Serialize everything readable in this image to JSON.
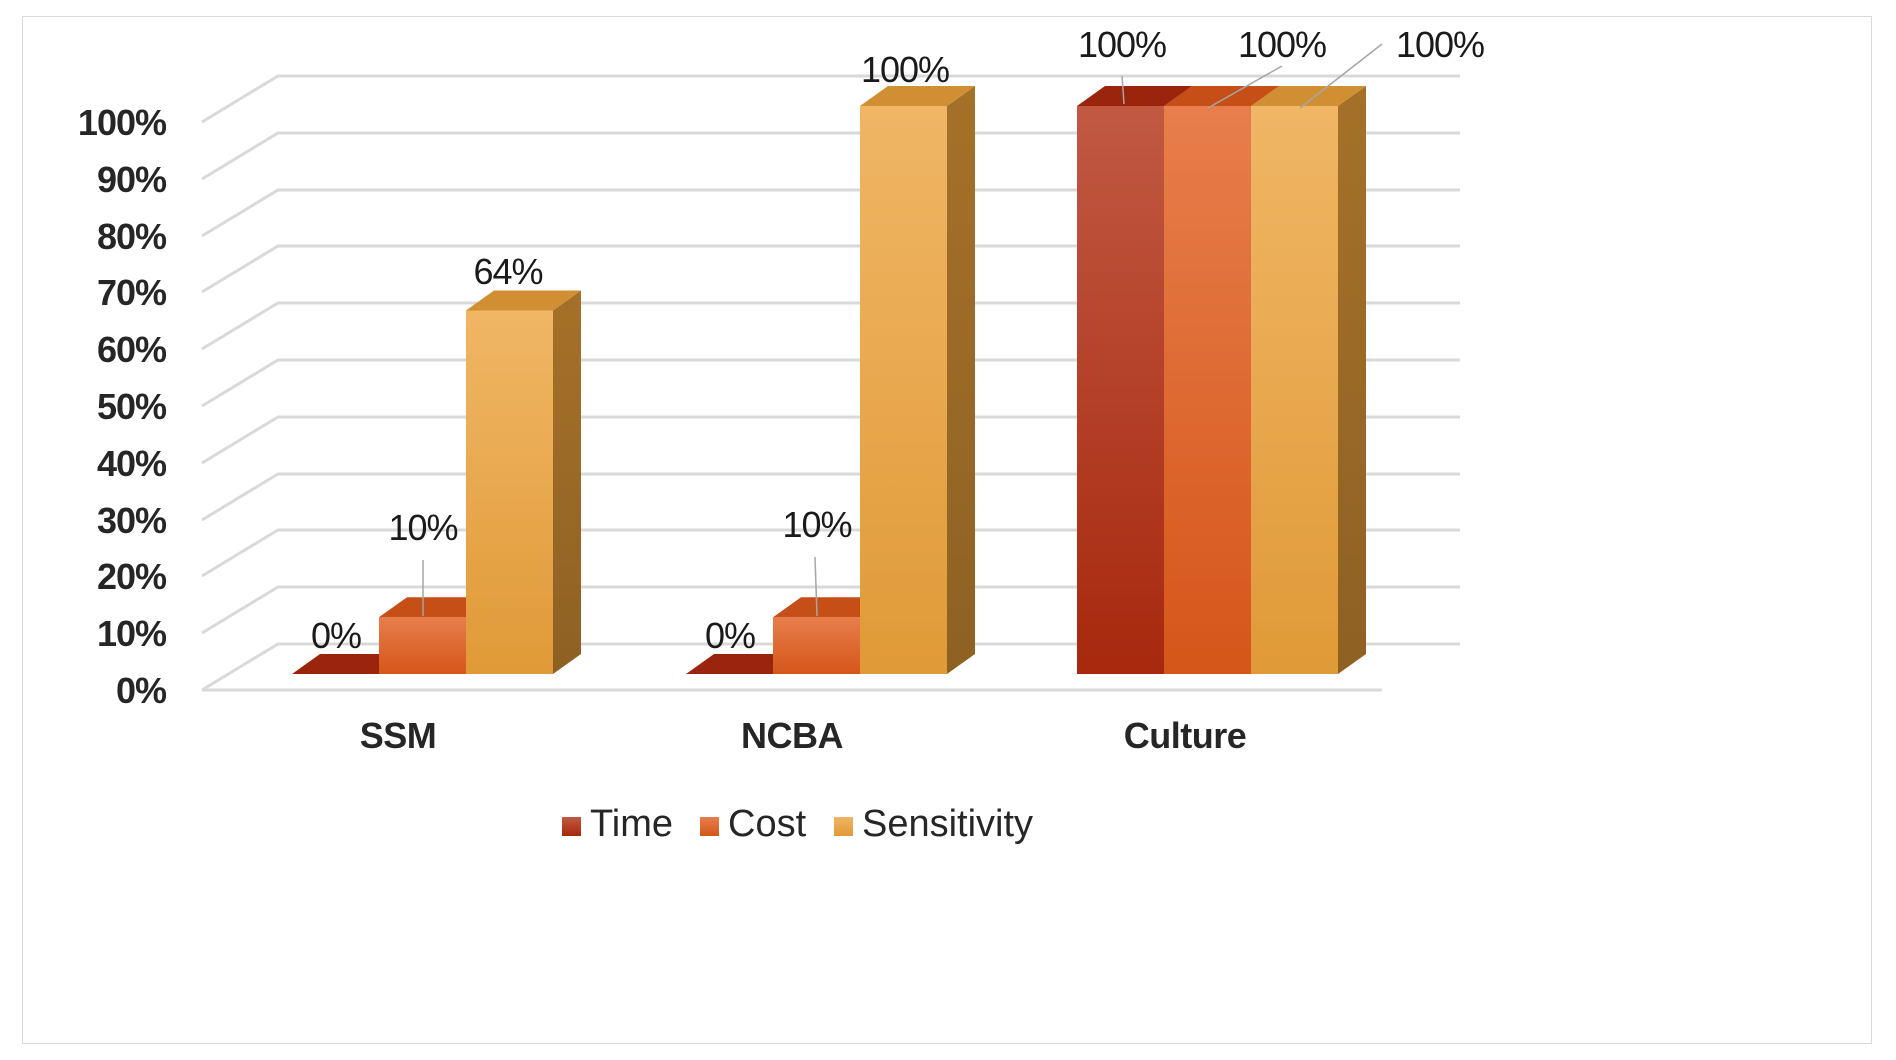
{
  "chart_data": {
    "type": "bar",
    "style": "3d-clustered-column",
    "categories": [
      "SSM",
      "NCBA",
      "Culture"
    ],
    "series": [
      {
        "name": "Time",
        "values": [
          0,
          0,
          100
        ],
        "color": "#b02a0e",
        "labels": [
          "0%",
          "0%",
          "100%"
        ]
      },
      {
        "name": "Cost",
        "values": [
          10,
          10,
          100
        ],
        "color": "#e05a1a",
        "labels": [
          "10%",
          "10%",
          "100%"
        ]
      },
      {
        "name": "Sensitivity",
        "values": [
          64,
          100,
          100
        ],
        "color": "#eca23a",
        "labels": [
          "64%",
          "100%",
          "100%"
        ]
      }
    ],
    "ylim": [
      0,
      100
    ],
    "yticks": [
      "0%",
      "10%",
      "20%",
      "30%",
      "40%",
      "50%",
      "60%",
      "70%",
      "80%",
      "90%",
      "100%"
    ],
    "grid": true,
    "legend_position": "bottom",
    "title": "",
    "xlabel": "",
    "ylabel": ""
  }
}
